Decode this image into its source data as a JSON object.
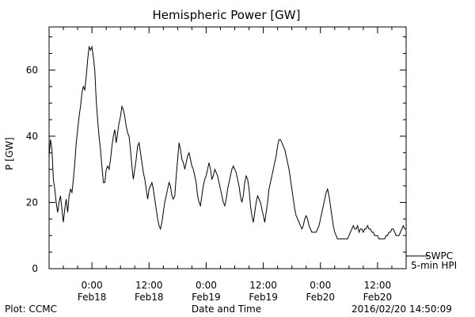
{
  "chart_data": {
    "type": "line",
    "title": "Hemispheric Power [GW]",
    "xlabel": "Date and Time",
    "ylabel": "P [GW]",
    "ylim": [
      0,
      73
    ],
    "xlim_hours": [
      -9,
      66
    ],
    "yticks": [
      0,
      20,
      40,
      60
    ],
    "xticks": [
      {
        "h": 0,
        "time": "0:00",
        "date": "Feb18"
      },
      {
        "h": 12,
        "time": "12:00",
        "date": "Feb18"
      },
      {
        "h": 24,
        "time": "0:00",
        "date": "Feb19"
      },
      {
        "h": 36,
        "time": "12:00",
        "date": "Feb19"
      },
      {
        "h": 48,
        "time": "0:00",
        "date": "Feb20"
      },
      {
        "h": 60,
        "time": "12:00",
        "date": "Feb20"
      }
    ],
    "grid": false,
    "series": [
      {
        "name": "SWPC",
        "points": [
          [
            -9.0,
            34
          ],
          [
            -8.7,
            39
          ],
          [
            -8.4,
            36
          ],
          [
            -8.1,
            27
          ],
          [
            -7.8,
            24
          ],
          [
            -7.5,
            20
          ],
          [
            -7.2,
            17
          ],
          [
            -6.9,
            20
          ],
          [
            -6.6,
            22
          ],
          [
            -6.3,
            18
          ],
          [
            -6.0,
            14
          ],
          [
            -5.7,
            18
          ],
          [
            -5.4,
            21
          ],
          [
            -5.1,
            17
          ],
          [
            -4.8,
            22
          ],
          [
            -4.5,
            24
          ],
          [
            -4.2,
            23
          ],
          [
            -3.9,
            27
          ],
          [
            -3.6,
            32
          ],
          [
            -3.3,
            38
          ],
          [
            -3.0,
            42
          ],
          [
            -2.7,
            46
          ],
          [
            -2.4,
            49
          ],
          [
            -2.1,
            53
          ],
          [
            -1.8,
            55
          ],
          [
            -1.5,
            54
          ],
          [
            -1.2,
            58
          ],
          [
            -0.9,
            63
          ],
          [
            -0.6,
            67
          ],
          [
            -0.3,
            66
          ],
          [
            0.0,
            67
          ],
          [
            0.3,
            64
          ],
          [
            0.6,
            60
          ],
          [
            0.9,
            51
          ],
          [
            1.2,
            45
          ],
          [
            1.5,
            40
          ],
          [
            1.8,
            36
          ],
          [
            2.1,
            31
          ],
          [
            2.4,
            26
          ],
          [
            2.7,
            26
          ],
          [
            3.0,
            30
          ],
          [
            3.3,
            31
          ],
          [
            3.6,
            30
          ],
          [
            3.9,
            33
          ],
          [
            4.2,
            37
          ],
          [
            4.5,
            40
          ],
          [
            4.8,
            42
          ],
          [
            5.1,
            38
          ],
          [
            5.4,
            41
          ],
          [
            5.7,
            44
          ],
          [
            6.0,
            46
          ],
          [
            6.3,
            49
          ],
          [
            6.6,
            48
          ],
          [
            6.9,
            46
          ],
          [
            7.2,
            43
          ],
          [
            7.5,
            41
          ],
          [
            7.8,
            40
          ],
          [
            8.1,
            36
          ],
          [
            8.4,
            31
          ],
          [
            8.7,
            27
          ],
          [
            9.0,
            30
          ],
          [
            9.3,
            33
          ],
          [
            9.6,
            37
          ],
          [
            9.9,
            38
          ],
          [
            10.2,
            35
          ],
          [
            10.5,
            32
          ],
          [
            10.8,
            29
          ],
          [
            11.1,
            27
          ],
          [
            11.4,
            24
          ],
          [
            11.7,
            21
          ],
          [
            12.0,
            24
          ],
          [
            12.3,
            25
          ],
          [
            12.6,
            26
          ],
          [
            12.9,
            24
          ],
          [
            13.2,
            21
          ],
          [
            13.5,
            18
          ],
          [
            13.8,
            15
          ],
          [
            14.1,
            13
          ],
          [
            14.4,
            12
          ],
          [
            14.7,
            14
          ],
          [
            15.0,
            17
          ],
          [
            15.3,
            20
          ],
          [
            15.6,
            22
          ],
          [
            15.9,
            24
          ],
          [
            16.2,
            26
          ],
          [
            16.5,
            25
          ],
          [
            16.8,
            22
          ],
          [
            17.1,
            21
          ],
          [
            17.4,
            22
          ],
          [
            17.7,
            28
          ],
          [
            18.0,
            33
          ],
          [
            18.3,
            38
          ],
          [
            18.6,
            36
          ],
          [
            18.9,
            33
          ],
          [
            19.2,
            32
          ],
          [
            19.5,
            30
          ],
          [
            19.8,
            32
          ],
          [
            20.1,
            34
          ],
          [
            20.4,
            35
          ],
          [
            20.7,
            33
          ],
          [
            21.0,
            31
          ],
          [
            21.3,
            30
          ],
          [
            21.6,
            28
          ],
          [
            21.9,
            26
          ],
          [
            22.2,
            22
          ],
          [
            22.5,
            20
          ],
          [
            22.8,
            19
          ],
          [
            23.1,
            22
          ],
          [
            23.4,
            25
          ],
          [
            23.7,
            27
          ],
          [
            24.0,
            28
          ],
          [
            24.3,
            30
          ],
          [
            24.6,
            32
          ],
          [
            24.9,
            30
          ],
          [
            25.2,
            27
          ],
          [
            25.5,
            28
          ],
          [
            25.8,
            30
          ],
          [
            26.1,
            29
          ],
          [
            26.4,
            28
          ],
          [
            26.7,
            26
          ],
          [
            27.0,
            24
          ],
          [
            27.3,
            22
          ],
          [
            27.6,
            20
          ],
          [
            27.9,
            19
          ],
          [
            28.2,
            21
          ],
          [
            28.5,
            24
          ],
          [
            28.8,
            26
          ],
          [
            29.1,
            28
          ],
          [
            29.4,
            30
          ],
          [
            29.7,
            31
          ],
          [
            30.0,
            30
          ],
          [
            30.3,
            29
          ],
          [
            30.6,
            27
          ],
          [
            30.9,
            25
          ],
          [
            31.2,
            22
          ],
          [
            31.5,
            20
          ],
          [
            31.8,
            22
          ],
          [
            32.1,
            26
          ],
          [
            32.4,
            28
          ],
          [
            32.7,
            27
          ],
          [
            33.0,
            24
          ],
          [
            33.3,
            19
          ],
          [
            33.6,
            16
          ],
          [
            33.9,
            14
          ],
          [
            34.2,
            17
          ],
          [
            34.5,
            20
          ],
          [
            34.8,
            22
          ],
          [
            35.1,
            21
          ],
          [
            35.4,
            20
          ],
          [
            35.7,
            18
          ],
          [
            36.0,
            16
          ],
          [
            36.3,
            14
          ],
          [
            36.6,
            17
          ],
          [
            36.9,
            20
          ],
          [
            37.2,
            24
          ],
          [
            37.5,
            26
          ],
          [
            37.8,
            28
          ],
          [
            38.1,
            30
          ],
          [
            38.4,
            32
          ],
          [
            38.7,
            34
          ],
          [
            39.0,
            37
          ],
          [
            39.3,
            39
          ],
          [
            39.6,
            39
          ],
          [
            39.9,
            38
          ],
          [
            40.2,
            37
          ],
          [
            40.5,
            36
          ],
          [
            40.8,
            34
          ],
          [
            41.1,
            32
          ],
          [
            41.4,
            30
          ],
          [
            41.7,
            27
          ],
          [
            42.0,
            24
          ],
          [
            42.3,
            21
          ],
          [
            42.6,
            18
          ],
          [
            42.9,
            16
          ],
          [
            43.2,
            15
          ],
          [
            43.5,
            14
          ],
          [
            43.8,
            13
          ],
          [
            44.1,
            12
          ],
          [
            44.4,
            13
          ],
          [
            44.7,
            15
          ],
          [
            45.0,
            16
          ],
          [
            45.3,
            15
          ],
          [
            45.6,
            13
          ],
          [
            45.9,
            12
          ],
          [
            46.2,
            11
          ],
          [
            46.5,
            11
          ],
          [
            46.8,
            11
          ],
          [
            47.1,
            11
          ],
          [
            47.4,
            12
          ],
          [
            47.7,
            13
          ],
          [
            48.0,
            15
          ],
          [
            48.3,
            17
          ],
          [
            48.6,
            19
          ],
          [
            48.9,
            21
          ],
          [
            49.2,
            23
          ],
          [
            49.5,
            24
          ],
          [
            49.8,
            22
          ],
          [
            50.1,
            19
          ],
          [
            50.4,
            16
          ],
          [
            50.7,
            13
          ],
          [
            51.0,
            11
          ],
          [
            51.3,
            10
          ],
          [
            51.6,
            9
          ],
          [
            51.9,
            9
          ],
          [
            52.5,
            9
          ],
          [
            53.1,
            9
          ],
          [
            53.7,
            9
          ],
          [
            54.0,
            10
          ],
          [
            54.3,
            11
          ],
          [
            54.6,
            12
          ],
          [
            54.9,
            13
          ],
          [
            55.2,
            12
          ],
          [
            55.5,
            12
          ],
          [
            55.8,
            13
          ],
          [
            56.1,
            11
          ],
          [
            56.4,
            12
          ],
          [
            56.7,
            12
          ],
          [
            57.0,
            11
          ],
          [
            57.3,
            12
          ],
          [
            57.6,
            12
          ],
          [
            57.9,
            13
          ],
          [
            58.2,
            12
          ],
          [
            58.5,
            12
          ],
          [
            58.8,
            11
          ],
          [
            59.1,
            11
          ],
          [
            59.4,
            10
          ],
          [
            59.7,
            10
          ],
          [
            60.0,
            10
          ],
          [
            60.3,
            9
          ],
          [
            60.6,
            9
          ],
          [
            60.9,
            9
          ],
          [
            61.2,
            9
          ],
          [
            61.5,
            9
          ],
          [
            61.8,
            10
          ],
          [
            62.1,
            10
          ],
          [
            62.4,
            11
          ],
          [
            62.7,
            11
          ],
          [
            63.0,
            12
          ],
          [
            63.3,
            12
          ],
          [
            63.6,
            11
          ],
          [
            63.9,
            10
          ],
          [
            64.2,
            10
          ],
          [
            64.5,
            10
          ],
          [
            64.8,
            11
          ],
          [
            65.1,
            12
          ],
          [
            65.4,
            13
          ],
          [
            65.7,
            12
          ],
          [
            66.0,
            12
          ]
        ]
      },
      {
        "name": "5-min HPI"
      }
    ]
  },
  "footer": {
    "left": "Plot: CCMC",
    "right": "2016/02/20 14:50:09"
  }
}
